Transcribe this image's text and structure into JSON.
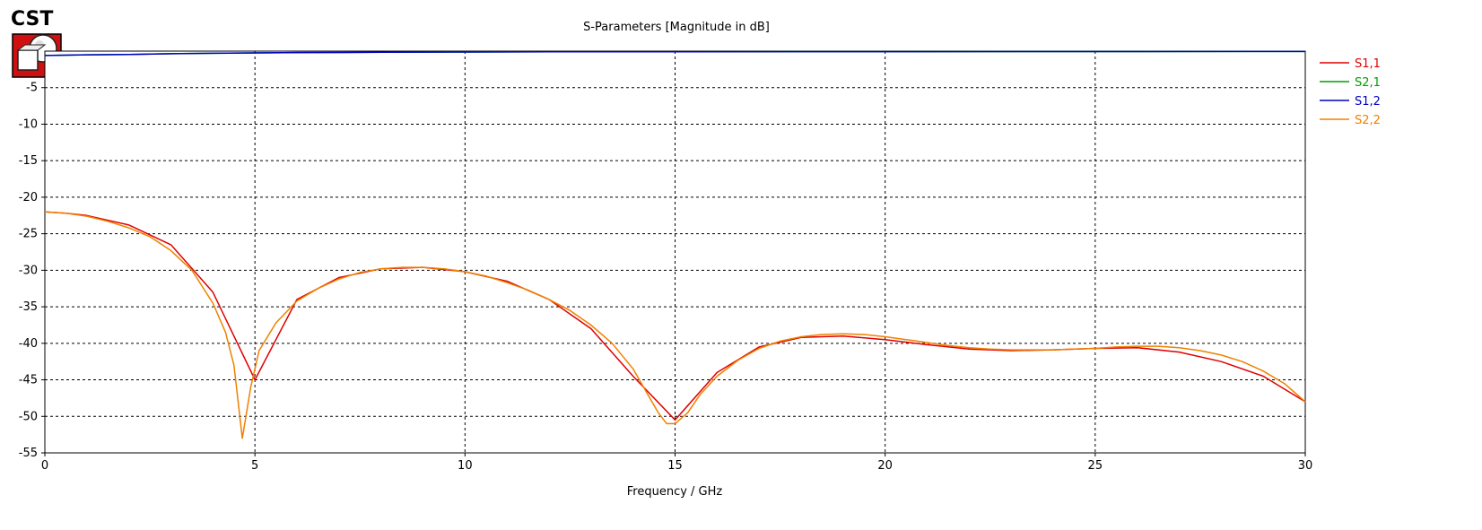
{
  "logo": {
    "text": "CST",
    "icon": "cst-logo-icon"
  },
  "chart_data": {
    "type": "line",
    "title": "S-Parameters [Magnitude in dB]",
    "xlabel": "Frequency / GHz",
    "ylabel": "",
    "xlim": [
      0,
      30
    ],
    "ylim": [
      -55,
      0
    ],
    "xticks": [
      0,
      5,
      10,
      15,
      20,
      25,
      30
    ],
    "yticks": [
      -5,
      -10,
      -15,
      -20,
      -25,
      -30,
      -35,
      -40,
      -45,
      -50,
      -55
    ],
    "grid": true,
    "legend_position": "right",
    "series": [
      {
        "name": "S1,1",
        "color": "#e00000",
        "x": [
          0,
          0.5,
          1,
          2,
          3,
          4,
          5,
          6,
          7,
          8,
          9,
          10,
          11,
          12,
          13,
          14,
          15,
          16,
          17,
          18,
          19,
          20,
          21,
          22,
          23,
          24,
          25,
          26,
          27,
          28,
          29,
          30
        ],
        "y": [
          -22.0,
          -22.2,
          -22.5,
          -23.8,
          -26.5,
          -33.0,
          -45.0,
          -34.0,
          -31.0,
          -29.8,
          -29.6,
          -30.2,
          -31.5,
          -34.0,
          -38.0,
          -44.5,
          -50.5,
          -44.0,
          -40.5,
          -39.2,
          -39.0,
          -39.5,
          -40.2,
          -40.8,
          -41.0,
          -40.9,
          -40.7,
          -40.6,
          -41.2,
          -42.5,
          -44.5,
          -48.0
        ]
      },
      {
        "name": "S2,1",
        "color": "#00a000",
        "x": [
          0,
          0.5,
          1,
          2,
          3,
          4,
          5,
          6,
          7,
          8,
          10,
          12,
          15,
          20,
          25,
          30
        ],
        "y": [
          -0.6,
          -0.55,
          -0.5,
          -0.45,
          -0.35,
          -0.3,
          -0.25,
          -0.2,
          -0.18,
          -0.15,
          -0.12,
          -0.1,
          -0.08,
          -0.07,
          -0.06,
          -0.05
        ]
      },
      {
        "name": "S1,2",
        "color": "#0000c0",
        "x": [
          0,
          0.5,
          1,
          2,
          3,
          4,
          5,
          6,
          7,
          8,
          10,
          12,
          15,
          20,
          25,
          30
        ],
        "y": [
          -0.6,
          -0.55,
          -0.5,
          -0.45,
          -0.35,
          -0.3,
          -0.25,
          -0.2,
          -0.18,
          -0.15,
          -0.12,
          -0.1,
          -0.08,
          -0.07,
          -0.06,
          -0.05
        ]
      },
      {
        "name": "S2,2",
        "color": "#f08000",
        "x": [
          0,
          0.5,
          1,
          1.5,
          2,
          2.5,
          3,
          3.5,
          4,
          4.3,
          4.5,
          4.7,
          4.9,
          5.1,
          5.5,
          6,
          6.5,
          7,
          7.5,
          8,
          8.5,
          9,
          9.5,
          10,
          10.5,
          11,
          11.5,
          12,
          12.5,
          13,
          13.5,
          14,
          14.3,
          14.6,
          14.8,
          15.0,
          15.3,
          15.6,
          16,
          16.5,
          17,
          17.5,
          18,
          18.5,
          19,
          19.5,
          20,
          20.5,
          21,
          21.5,
          22,
          22.5,
          23,
          23.5,
          24,
          24.5,
          25,
          25.5,
          26,
          26.5,
          27,
          27.5,
          28,
          28.5,
          29,
          29.5,
          30
        ],
        "y": [
          -22.0,
          -22.2,
          -22.6,
          -23.3,
          -24.2,
          -25.4,
          -27.3,
          -30.0,
          -34.5,
          -38.5,
          -43.0,
          -53.0,
          -46.0,
          -41.0,
          -37.2,
          -34.2,
          -32.5,
          -31.2,
          -30.3,
          -29.8,
          -29.6,
          -29.6,
          -29.8,
          -30.2,
          -30.8,
          -31.7,
          -32.7,
          -34.0,
          -35.5,
          -37.5,
          -40.0,
          -43.5,
          -46.5,
          -49.5,
          -51.0,
          -51.0,
          -49.5,
          -47.0,
          -44.5,
          -42.3,
          -40.7,
          -39.7,
          -39.1,
          -38.8,
          -38.7,
          -38.8,
          -39.1,
          -39.5,
          -39.9,
          -40.3,
          -40.6,
          -40.8,
          -40.9,
          -40.9,
          -40.9,
          -40.8,
          -40.7,
          -40.5,
          -40.4,
          -40.4,
          -40.6,
          -41.0,
          -41.6,
          -42.5,
          -43.8,
          -45.5,
          -48.0
        ]
      }
    ]
  }
}
